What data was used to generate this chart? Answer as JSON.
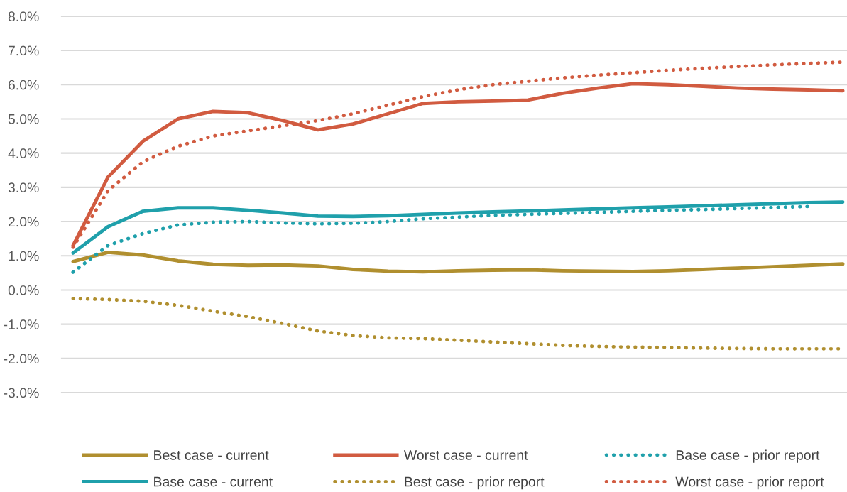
{
  "chart_data": {
    "type": "line",
    "categories": [
      null,
      null,
      null,
      null,
      null,
      null,
      null,
      null,
      null,
      null,
      null,
      null,
      null,
      null,
      null,
      null,
      null,
      null,
      null,
      null,
      null,
      null,
      null
    ],
    "series": [
      {
        "name": "Best case - current",
        "color": "#b08f2f",
        "line_style": "solid",
        "values": [
          0.83,
          1.1,
          1.02,
          0.85,
          0.75,
          0.72,
          0.73,
          0.7,
          0.6,
          0.55,
          0.53,
          0.56,
          0.58,
          0.59,
          0.56,
          0.55,
          0.54,
          0.56,
          0.6,
          0.64,
          0.68,
          0.72,
          0.76
        ]
      },
      {
        "name": "Base case - current",
        "color": "#1fa0ab",
        "line_style": "solid",
        "values": [
          1.08,
          1.85,
          2.3,
          2.4,
          2.4,
          2.33,
          2.25,
          2.16,
          2.15,
          2.17,
          2.21,
          2.25,
          2.28,
          2.31,
          2.34,
          2.37,
          2.4,
          2.43,
          2.46,
          2.49,
          2.52,
          2.55,
          2.57
        ]
      },
      {
        "name": "Worst case - current",
        "color": "#d15b40",
        "line_style": "solid",
        "values": [
          1.3,
          3.3,
          4.35,
          5.0,
          5.22,
          5.18,
          4.95,
          4.68,
          4.85,
          5.15,
          5.45,
          5.5,
          5.52,
          5.55,
          5.75,
          5.9,
          6.03,
          6.0,
          5.95,
          5.9,
          5.87,
          5.85,
          5.82
        ]
      },
      {
        "name": "Best case - prior report",
        "color": "#b08f2f",
        "line_style": "dotted",
        "values": [
          -0.25,
          -0.28,
          -0.33,
          -0.45,
          -0.62,
          -0.78,
          -0.98,
          -1.2,
          -1.33,
          -1.4,
          -1.42,
          -1.47,
          -1.52,
          -1.57,
          -1.62,
          -1.65,
          -1.67,
          -1.68,
          -1.7,
          -1.71,
          -1.72,
          -1.72,
          -1.72
        ]
      },
      {
        "name": "Base case - prior report",
        "color": "#1fa0ab",
        "line_style": "dotted",
        "values": [
          0.52,
          1.3,
          1.65,
          1.9,
          1.98,
          2.0,
          1.96,
          1.93,
          1.95,
          2.0,
          2.08,
          2.13,
          2.18,
          2.21,
          2.24,
          2.27,
          2.3,
          2.33,
          2.35,
          2.38,
          2.41,
          2.44,
          null
        ]
      },
      {
        "name": "Worst case - prior report",
        "color": "#d15b40",
        "line_style": "dotted",
        "values": [
          1.25,
          2.9,
          3.75,
          4.2,
          4.5,
          4.65,
          4.8,
          4.95,
          5.15,
          5.4,
          5.65,
          5.85,
          6.0,
          6.1,
          6.2,
          6.28,
          6.35,
          6.42,
          6.48,
          6.53,
          6.58,
          6.62,
          6.66
        ]
      }
    ],
    "ylim": [
      -3,
      8
    ],
    "yticks": [
      {
        "value": -3,
        "label": "-3.0%"
      },
      {
        "value": -2,
        "label": "-2.0%"
      },
      {
        "value": -1,
        "label": "-1.0%"
      },
      {
        "value": 0,
        "label": "0.0%"
      },
      {
        "value": 1,
        "label": "1.0%"
      },
      {
        "value": 2,
        "label": "2.0%"
      },
      {
        "value": 3,
        "label": "3.0%"
      },
      {
        "value": 4,
        "label": "4.0%"
      },
      {
        "value": 5,
        "label": "5.0%"
      },
      {
        "value": 6,
        "label": "6.0%"
      },
      {
        "value": 7,
        "label": "7.0%"
      },
      {
        "value": 8,
        "label": "8.0%"
      }
    ],
    "grid": "y",
    "legend": "bottom",
    "tick_labels": "y",
    "marker": "none"
  }
}
